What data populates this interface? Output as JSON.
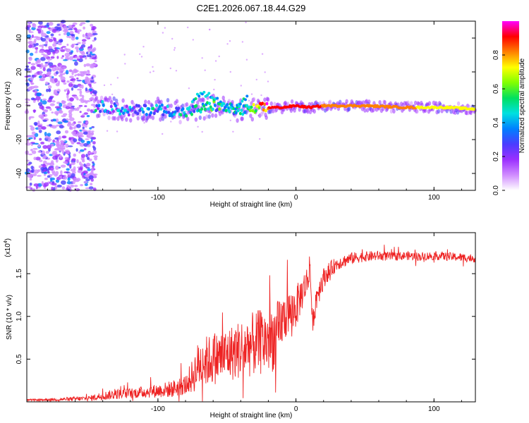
{
  "title": "C2E1.2026.067.18.44.G29",
  "chart_data": [
    {
      "type": "heatmap",
      "title": "C2E1.2026.067.18.44.G29",
      "xlabel": "Height of straight line (km)",
      "ylabel": "Frequency (Hz)",
      "xlim": [
        -195,
        130
      ],
      "ylim": [
        -50,
        50
      ],
      "xticks": [
        -100,
        0,
        100
      ],
      "xtick_labels": [
        "-100",
        "0",
        "100"
      ],
      "yticks": [
        -40,
        -20,
        0,
        20,
        40
      ],
      "ytick_labels": [
        "-40",
        "-20",
        "0",
        "20",
        "40"
      ],
      "noise_region_x": [
        -195,
        -145
      ],
      "ridge": {
        "x": [
          -145,
          -120,
          -100,
          -80,
          -60,
          -40,
          -20,
          -10,
          0,
          10,
          20,
          50,
          80,
          110,
          130
        ],
        "frequency": [
          0,
          -3,
          -2,
          -4,
          0,
          -3,
          -1,
          -1,
          0,
          -1,
          0,
          0,
          -1,
          -1,
          -2
        ],
        "amplitude": [
          0.4,
          0.35,
          0.4,
          0.45,
          0.5,
          0.45,
          0.95,
          0.95,
          0.9,
          0.95,
          0.85,
          0.8,
          0.78,
          0.75,
          0.75
        ]
      },
      "colorbar": {
        "label": "Normalized spectral amplitude",
        "range": [
          0,
          1
        ],
        "ticks": [
          0.0,
          0.2,
          0.4,
          0.6,
          0.8
        ],
        "tick_labels": [
          "0.0",
          "0.2",
          "0.4",
          "0.6",
          "0.8"
        ],
        "colors": [
          "#ffffff",
          "#d08cff",
          "#9b30ff",
          "#4b3cff",
          "#0080ff",
          "#00e0e0",
          "#00e060",
          "#80ff00",
          "#ffff00",
          "#ff8000",
          "#ff0000",
          "#ff00ff"
        ]
      }
    },
    {
      "type": "line",
      "xlabel": "Height of straight line (km)",
      "ylabel": "SNR (10 * v/v)",
      "y_multiplier": "(x10",
      "y_multiplier_exp": "4",
      "y_multiplier_close": ")",
      "xlim": [
        -195,
        130
      ],
      "ylim": [
        0,
        1.98
      ],
      "xticks": [
        -100,
        0,
        100
      ],
      "xtick_labels": [
        "-100",
        "0",
        "100"
      ],
      "yticks": [
        0.5,
        1.0,
        1.5
      ],
      "ytick_labels": [
        "0.5",
        "1.0",
        "1.5"
      ],
      "series": [
        {
          "name": "SNR",
          "color": "#ee2222",
          "x": [
            -195,
            -170,
            -150,
            -140,
            -130,
            -120,
            -100,
            -90,
            -80,
            -75,
            -70,
            -60,
            -50,
            -40,
            -30,
            -20,
            -12,
            -10,
            -5,
            0,
            5,
            9,
            10,
            12,
            15,
            20,
            25,
            30,
            40,
            50,
            60,
            70,
            80,
            90,
            100,
            110,
            120,
            130
          ],
          "y": [
            0.02,
            0.03,
            0.04,
            0.07,
            0.09,
            0.1,
            0.13,
            0.15,
            0.2,
            0.3,
            0.45,
            0.5,
            0.55,
            0.62,
            0.68,
            0.72,
            0.8,
            0.95,
            1.05,
            1.1,
            1.3,
            1.45,
            1.65,
            0.9,
            1.25,
            1.45,
            1.55,
            1.62,
            1.68,
            1.7,
            1.71,
            1.7,
            1.71,
            1.7,
            1.71,
            1.7,
            1.69,
            1.68
          ],
          "noise": [
            0.01,
            0.02,
            0.03,
            0.05,
            0.06,
            0.06,
            0.08,
            0.1,
            0.12,
            0.2,
            0.3,
            0.3,
            0.32,
            0.35,
            0.38,
            0.4,
            0.4,
            0.3,
            0.25,
            0.25,
            0.2,
            0.18,
            0.15,
            0.1,
            0.18,
            0.12,
            0.1,
            0.08,
            0.07,
            0.06,
            0.06,
            0.05,
            0.05,
            0.05,
            0.05,
            0.05,
            0.05,
            0.05
          ]
        }
      ]
    }
  ]
}
